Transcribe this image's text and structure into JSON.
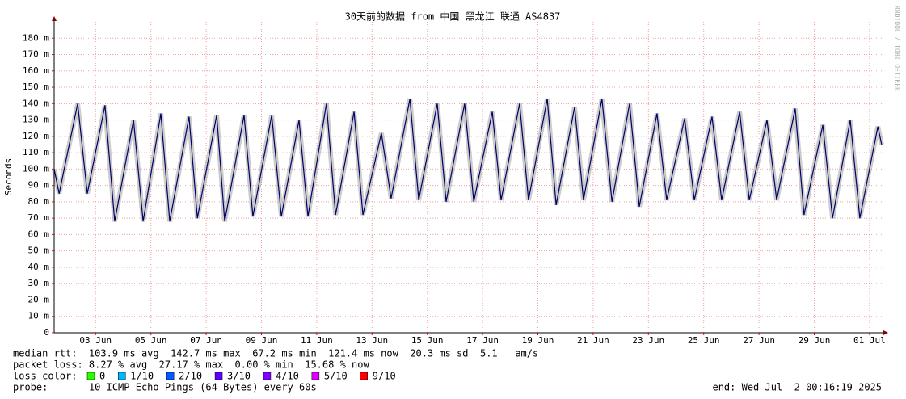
{
  "chart_data": {
    "type": "line",
    "title": "30天前的数据 from 中国 黑龙江 联通 AS4837",
    "y_label": "Seconds",
    "side_text": "RRDTOOL / TOBI OETIKER",
    "xlim": [
      2,
      32
    ],
    "xticks": [
      {
        "value": 3.5,
        "label": "03 Jun"
      },
      {
        "value": 5.5,
        "label": "05 Jun"
      },
      {
        "value": 7.5,
        "label": "07 Jun"
      },
      {
        "value": 9.5,
        "label": "09 Jun"
      },
      {
        "value": 11.5,
        "label": "11 Jun"
      },
      {
        "value": 13.5,
        "label": "13 Jun"
      },
      {
        "value": 15.5,
        "label": "15 Jun"
      },
      {
        "value": 17.5,
        "label": "17 Jun"
      },
      {
        "value": 19.5,
        "label": "19 Jun"
      },
      {
        "value": 21.5,
        "label": "21 Jun"
      },
      {
        "value": 23.5,
        "label": "23 Jun"
      },
      {
        "value": 25.5,
        "label": "25 Jun"
      },
      {
        "value": 27.5,
        "label": "27 Jun"
      },
      {
        "value": 29.5,
        "label": "29 Jun"
      },
      {
        "value": 31.5,
        "label": "01 Jul"
      }
    ],
    "ylim": [
      0,
      190
    ],
    "yticks": [
      0,
      {
        "value": 10,
        "label": "10 m"
      },
      {
        "value": 20,
        "label": "20 m"
      },
      {
        "value": 30,
        "label": "30 m"
      },
      {
        "value": 40,
        "label": "40 m"
      },
      {
        "value": 50,
        "label": "50 m"
      },
      {
        "value": 60,
        "label": "60 m"
      },
      {
        "value": 70,
        "label": "70 m"
      },
      {
        "value": 80,
        "label": "80 m"
      },
      {
        "value": 90,
        "label": "90 m"
      },
      {
        "value": 100,
        "label": "100 m"
      },
      {
        "value": 110,
        "label": "110 m"
      },
      {
        "value": 120,
        "label": "120 m"
      },
      {
        "value": 130,
        "label": "130 m"
      },
      {
        "value": 140,
        "label": "140 m"
      },
      {
        "value": 150,
        "label": "150 m"
      },
      {
        "value": 160,
        "label": "160 m"
      },
      {
        "value": 170,
        "label": "170 m"
      },
      {
        "value": 180,
        "label": "180 m"
      }
    ],
    "grid": true,
    "x": [
      2.0,
      2.18,
      2.85,
      3.2,
      3.84,
      4.19,
      4.87,
      5.22,
      5.86,
      6.18,
      6.88,
      7.18,
      7.88,
      8.17,
      8.87,
      9.19,
      9.87,
      10.22,
      10.86,
      11.18,
      11.85,
      12.18,
      12.85,
      13.17,
      13.84,
      14.19,
      14.87,
      15.19,
      15.86,
      16.18,
      16.85,
      17.18,
      17.85,
      18.17,
      18.84,
      19.16,
      19.84,
      20.16,
      20.83,
      21.15,
      21.82,
      22.18,
      22.82,
      23.17,
      23.81,
      24.16,
      24.81,
      25.16,
      25.8,
      26.15,
      26.8,
      27.15,
      27.79,
      28.14,
      28.81,
      29.13,
      29.81,
      30.16,
      30.8,
      31.15,
      31.8,
      31.94
    ],
    "series": [
      {
        "name": "median rtt",
        "color": "#000066",
        "values": [
          100,
          85,
          140,
          85,
          139,
          68,
          130,
          68,
          134,
          68,
          132,
          70,
          133,
          68,
          133,
          71,
          133,
          71,
          130,
          71,
          140,
          72,
          135,
          72,
          122,
          82,
          143,
          81,
          140,
          80,
          140,
          80,
          135,
          81,
          140,
          81,
          143,
          78,
          138,
          81,
          143,
          80,
          140,
          77,
          134,
          81,
          131,
          81,
          132,
          81,
          135,
          81,
          130,
          81,
          137,
          72,
          127,
          70,
          130,
          70,
          126,
          115
        ]
      }
    ],
    "stats": [
      "median rtt:  103.9 ms avg  142.7 ms max  67.2 ms min  121.4 ms now  20.3 ms sd  5.1   am/s",
      "packet loss: 8.27 % avg  27.17 % max  0.00 % min  15.68 % now"
    ],
    "loss_legend": {
      "title": "loss color:",
      "items": [
        {
          "label": "0",
          "color": "#26ff00"
        },
        {
          "label": "1/10",
          "color": "#00b8ff"
        },
        {
          "label": "2/10",
          "color": "#0059ff"
        },
        {
          "label": "3/10",
          "color": "#5e00ff"
        },
        {
          "label": "4/10",
          "color": "#7e00ff"
        },
        {
          "label": "5/10",
          "color": "#dd00ff"
        },
        {
          "label": "9/10",
          "color": "#ff0000"
        }
      ]
    },
    "probe": "probe:       10 ICMP Echo Pings (64 Bytes) every 60s",
    "end": "end: Wed Jul  2 00:16:19 2025"
  }
}
